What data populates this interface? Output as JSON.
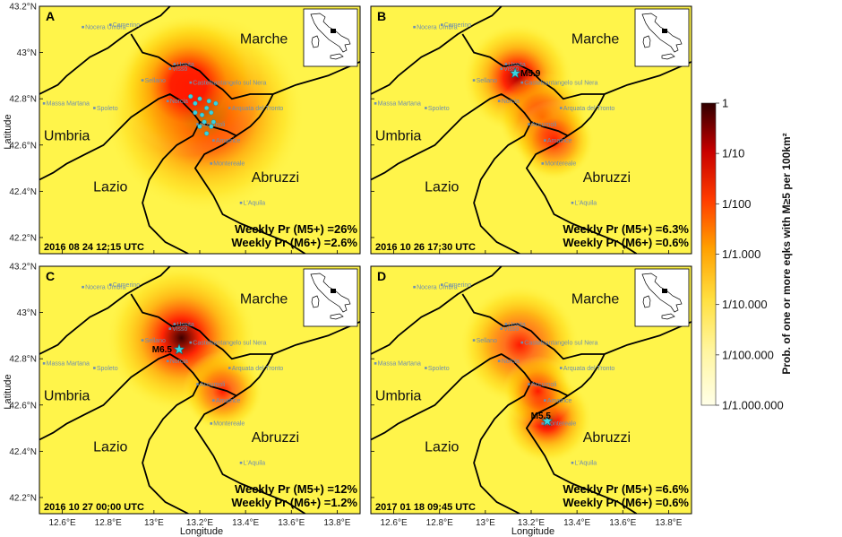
{
  "axis": {
    "xlabel": "Longitude",
    "ylabel": "Latitude",
    "x_ticks": [
      "12.6°E",
      "12.8°E",
      "13°E",
      "13.2°E",
      "13.4°E",
      "13.6°E",
      "13.8°E"
    ],
    "y_ticks": [
      "43.2°N",
      "43°N",
      "42.8°N",
      "42.6°N",
      "42.4°N",
      "42.2°N"
    ]
  },
  "regions": [
    "Marche",
    "Umbria",
    "Lazio",
    "Abruzzi"
  ],
  "towns": [
    "Camerino",
    "Nocera Umbra",
    "Visso",
    "Ussita",
    "Castelsantangelo sul Nera",
    "Sellano",
    "Massa Martana",
    "Spoleto",
    "Norcia",
    "Arquata del Tronto",
    "Accumoli",
    "Amatrice",
    "Montereale",
    "L'Aquila"
  ],
  "panels": [
    {
      "label": "A",
      "date": "2016 08 24 12:15 UTC",
      "m5_text": "Weekly Pr (M5+) =26%",
      "m6_text": "Weekly Pr (M6+) =2.6%",
      "mainshock": null,
      "hotspots": [
        {
          "lon": 13.22,
          "lat": 42.74,
          "intensity": 1.0,
          "spread": 0.2
        },
        {
          "lon": 13.15,
          "lat": 42.86,
          "intensity": 0.6,
          "spread": 0.14
        }
      ],
      "quakes": [
        {
          "lon": 13.16,
          "lat": 42.81
        },
        {
          "lon": 13.18,
          "lat": 42.78
        },
        {
          "lon": 13.2,
          "lat": 42.8
        },
        {
          "lon": 13.23,
          "lat": 42.76
        },
        {
          "lon": 13.21,
          "lat": 42.73
        },
        {
          "lon": 13.25,
          "lat": 42.74
        },
        {
          "lon": 13.26,
          "lat": 42.7
        },
        {
          "lon": 13.22,
          "lat": 42.7
        },
        {
          "lon": 13.2,
          "lat": 42.68
        },
        {
          "lon": 13.24,
          "lat": 42.79
        },
        {
          "lon": 13.27,
          "lat": 42.78
        },
        {
          "lon": 13.23,
          "lat": 42.65
        },
        {
          "lon": 13.18,
          "lat": 42.74
        },
        {
          "lon": 13.25,
          "lat": 42.68
        }
      ]
    },
    {
      "label": "B",
      "date": "2016 10 26 17:30 UTC",
      "m5_text": "Weekly Pr (M5+) =6.3%",
      "m6_text": "Weekly Pr (M6+) =0.6%",
      "mainshock": {
        "lon": 13.13,
        "lat": 42.91,
        "label": "M5.9"
      },
      "hotspots": [
        {
          "lon": 13.14,
          "lat": 42.89,
          "intensity": 0.78,
          "spread": 0.11
        },
        {
          "lon": 13.25,
          "lat": 42.72,
          "intensity": 0.3,
          "spread": 0.09
        },
        {
          "lon": 13.3,
          "lat": 42.62,
          "intensity": 0.25,
          "spread": 0.08
        }
      ],
      "quakes": []
    },
    {
      "label": "C",
      "date": "2016 10 27 00:00 UTC",
      "m5_text": "Weekly Pr (M5+) =12%",
      "m6_text": "Weekly Pr (M6+) =1.2%",
      "mainshock": {
        "lon": 13.11,
        "lat": 42.84,
        "label": "M6.5"
      },
      "hotspots": [
        {
          "lon": 13.12,
          "lat": 42.89,
          "intensity": 0.95,
          "spread": 0.15
        },
        {
          "lon": 13.3,
          "lat": 42.66,
          "intensity": 0.4,
          "spread": 0.08
        }
      ],
      "quakes": []
    },
    {
      "label": "D",
      "date": "2017 01 18 09:45 UTC",
      "m5_text": "Weekly Pr (M5+) =6.6%",
      "m6_text": "Weekly Pr (M6+) =0.6%",
      "mainshock": {
        "lon": 13.27,
        "lat": 42.53,
        "label": "M5.5"
      },
      "hotspots": [
        {
          "lon": 13.27,
          "lat": 42.54,
          "intensity": 0.85,
          "spread": 0.09
        },
        {
          "lon": 13.15,
          "lat": 42.86,
          "intensity": 0.5,
          "spread": 0.12
        },
        {
          "lon": 13.23,
          "lat": 42.66,
          "intensity": 0.35,
          "spread": 0.07
        }
      ],
      "quakes": []
    }
  ],
  "colorbar": {
    "title": "Prob. of one or more eqks with M≥5 per 100km²",
    "ticks": [
      "1",
      "1/10",
      "1/100",
      "1/1.000",
      "1/10.000",
      "1/100.000",
      "1/1.000.000"
    ]
  },
  "colors": {
    "background": "#fff44a",
    "high": "#3d0000",
    "mid": "#ff1a00",
    "orange": "#ff9a00",
    "quake": "#39d3e0",
    "town": "#6f8fb0"
  }
}
